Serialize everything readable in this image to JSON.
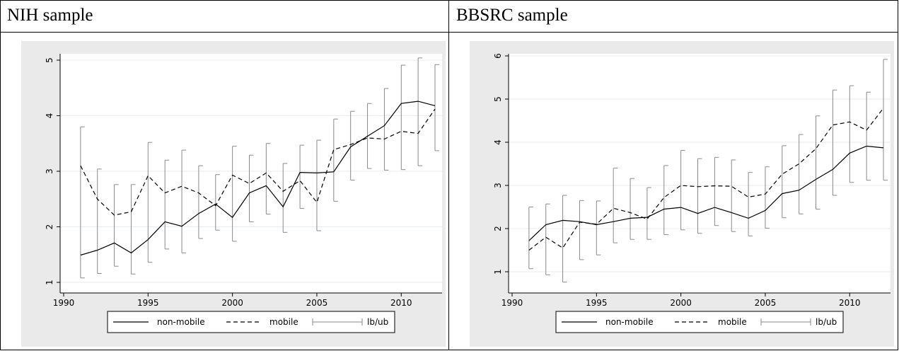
{
  "panels": [
    {
      "title": "NIH sample"
    },
    {
      "title": "BBSRC sample"
    }
  ],
  "chart_data": [
    {
      "type": "line",
      "title": "NIH sample",
      "xlabel": "",
      "ylabel": "",
      "xlim": [
        1990,
        2012
      ],
      "ylim": [
        1,
        5
      ],
      "xticks": [
        1990,
        1995,
        2000,
        2005,
        2010
      ],
      "yticks": [
        1,
        2,
        3,
        4,
        5
      ],
      "grid": true,
      "legend_position": "bottom",
      "legend": [
        "non-mobile",
        "mobile",
        "lb/ub"
      ],
      "x": [
        1991,
        1992,
        1993,
        1994,
        1995,
        1996,
        1997,
        1998,
        1999,
        2000,
        2001,
        2002,
        2003,
        2004,
        2005,
        2006,
        2007,
        2008,
        2009,
        2010,
        2011,
        2012
      ],
      "series": [
        {
          "name": "non-mobile",
          "style": "solid",
          "values": [
            1.49,
            1.58,
            1.71,
            1.53,
            1.77,
            2.09,
            2.01,
            2.24,
            2.41,
            2.17,
            2.61,
            2.74,
            2.36,
            2.98,
            2.97,
            2.99,
            3.44,
            3.63,
            3.82,
            4.22,
            4.26,
            4.18
          ]
        },
        {
          "name": "mobile",
          "style": "dashed",
          "values": [
            3.1,
            2.5,
            2.21,
            2.27,
            2.92,
            2.61,
            2.73,
            2.61,
            2.38,
            2.93,
            2.78,
            2.97,
            2.64,
            2.83,
            2.44,
            3.39,
            3.48,
            3.6,
            3.58,
            3.72,
            3.68,
            4.12
          ]
        }
      ],
      "error_bars": {
        "name": "lb/ub",
        "x": [
          1991,
          1992,
          1993,
          1994,
          1995,
          1996,
          1997,
          1998,
          1999,
          2000,
          2001,
          2002,
          2003,
          2004,
          2005,
          2006,
          2007,
          2008,
          2009,
          2010,
          2011,
          2012
        ],
        "lower": [
          1.08,
          1.16,
          1.29,
          1.15,
          1.36,
          1.6,
          1.53,
          1.79,
          1.94,
          1.74,
          2.09,
          2.23,
          1.9,
          2.33,
          1.93,
          2.46,
          2.84,
          3.05,
          3.02,
          3.03,
          3.1,
          3.37
        ],
        "upper": [
          3.8,
          3.04,
          2.76,
          2.76,
          3.52,
          3.2,
          3.38,
          3.1,
          2.94,
          3.45,
          3.29,
          3.5,
          3.14,
          3.47,
          3.56,
          3.94,
          4.08,
          4.22,
          4.49,
          4.91,
          5.04,
          4.92
        ]
      }
    },
    {
      "type": "line",
      "title": "BBSRC sample",
      "xlabel": "",
      "ylabel": "",
      "xlim": [
        1990,
        2012
      ],
      "ylim": [
        1,
        6
      ],
      "xticks": [
        1990,
        1995,
        2000,
        2005,
        2010
      ],
      "yticks": [
        1,
        2,
        3,
        4,
        5,
        6
      ],
      "grid": true,
      "legend_position": "bottom",
      "legend": [
        "non-mobile",
        "mobile",
        "lb/ub"
      ],
      "x": [
        1991,
        1992,
        1993,
        1994,
        1995,
        1996,
        1997,
        1998,
        1999,
        2000,
        2001,
        2002,
        2003,
        2004,
        2005,
        2006,
        2007,
        2008,
        2009,
        2010,
        2011,
        2012
      ],
      "series": [
        {
          "name": "non-mobile",
          "style": "solid",
          "values": [
            1.72,
            2.09,
            2.19,
            2.16,
            2.09,
            2.16,
            2.24,
            2.26,
            2.45,
            2.49,
            2.35,
            2.49,
            2.37,
            2.24,
            2.42,
            2.81,
            2.89,
            3.14,
            3.37,
            3.75,
            3.91,
            3.87
          ]
        },
        {
          "name": "mobile",
          "style": "dashed",
          "values": [
            1.5,
            1.8,
            1.55,
            2.15,
            2.1,
            2.47,
            2.37,
            2.22,
            2.72,
            3.0,
            2.97,
            2.99,
            2.98,
            2.73,
            2.8,
            3.26,
            3.5,
            3.85,
            4.4,
            4.47,
            4.28,
            4.79
          ]
        }
      ],
      "error_bars": {
        "name": "lb/ub",
        "x": [
          1991,
          1992,
          1993,
          1994,
          1995,
          1996,
          1997,
          1998,
          1999,
          2000,
          2001,
          2002,
          2003,
          2004,
          2005,
          2006,
          2007,
          2008,
          2009,
          2010,
          2011,
          2012
        ],
        "lower": [
          1.07,
          0.93,
          0.76,
          1.28,
          1.39,
          1.67,
          1.75,
          1.75,
          1.86,
          1.97,
          1.89,
          2.07,
          1.93,
          1.83,
          2.01,
          2.25,
          2.34,
          2.45,
          2.77,
          3.07,
          3.12,
          3.12
        ],
        "upper": [
          2.5,
          2.57,
          2.77,
          2.65,
          2.64,
          3.4,
          3.16,
          2.95,
          3.46,
          3.81,
          3.62,
          3.65,
          3.59,
          3.3,
          3.43,
          3.92,
          4.18,
          4.61,
          5.21,
          5.31,
          5.16,
          5.92
        ]
      }
    }
  ]
}
